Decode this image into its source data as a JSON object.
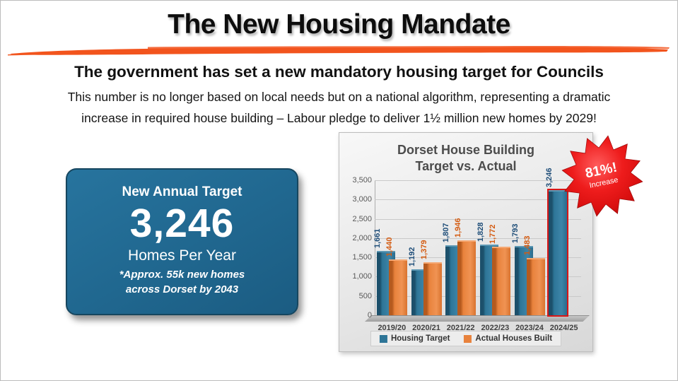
{
  "slide": {
    "title": "The New Housing Mandate",
    "subtitle": "The government has set a new mandatory housing target for Councils",
    "body_line1": "This number is no longer based on local needs but on a national algorithm, representing a dramatic",
    "body_line2": "increase in required house building – Labour pledge to deliver 1½ million new homes by 2029!",
    "accent_color": "#f2541d"
  },
  "target_card": {
    "heading": "New Annual Target",
    "value": "3,246",
    "unit": "Homes Per Year",
    "note_line1": "*Approx. 55k new homes",
    "note_line2": "across Dorset by 2043",
    "background_color": "#20678f"
  },
  "badge": {
    "line1": "81%!",
    "line2": "Increase",
    "color": "#e01313"
  },
  "chart_data": {
    "type": "bar",
    "title": "Dorset House Building Target vs. Actual",
    "title_lines": [
      "Dorset House Building",
      "Target vs. Actual"
    ],
    "categories": [
      "2019/20",
      "2020/21",
      "2021/22",
      "2022/23",
      "2023/24",
      "2024/25"
    ],
    "series": [
      {
        "name": "Housing Target",
        "color": "#2e7597",
        "values": [
          1661,
          1192,
          1807,
          1828,
          1793,
          3246
        ],
        "labels": [
          "1,661",
          "1,192",
          "1,807",
          "1,828",
          "1,793",
          "3,246"
        ]
      },
      {
        "name": "Actual Houses Built",
        "color": "#e8823c",
        "values": [
          1440,
          1379,
          1946,
          1772,
          1483,
          null
        ],
        "labels": [
          "1,440",
          "1,379",
          "1,946",
          "1,772",
          "1,483",
          ""
        ]
      }
    ],
    "y_ticks": [
      "0",
      "500",
      "1,000",
      "1,500",
      "2,000",
      "2,500",
      "3,000",
      "3,500"
    ],
    "ylim": [
      0,
      3500
    ],
    "grid": true,
    "legend_position": "bottom",
    "highlight": {
      "series": 0,
      "index": 5,
      "outline_color": "#d91616"
    }
  }
}
